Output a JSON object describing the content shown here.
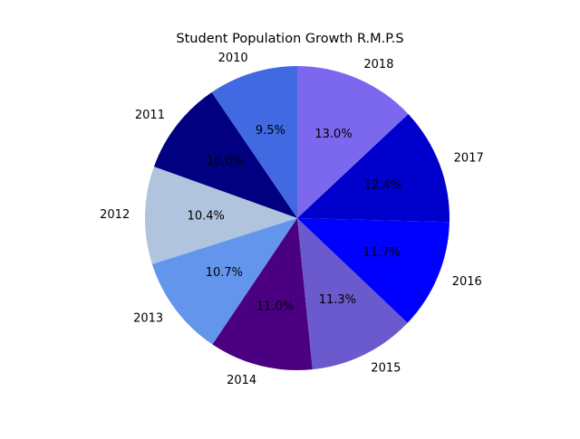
{
  "chart_data": {
    "type": "pie",
    "title": "Student Population Growth R.M.P.S",
    "categories": [
      "2010",
      "2011",
      "2012",
      "2013",
      "2014",
      "2015",
      "2016",
      "2017",
      "2018"
    ],
    "values": [
      9.5,
      10.0,
      10.4,
      10.7,
      11.0,
      11.3,
      11.7,
      12.4,
      13.0
    ],
    "percent_labels": [
      "9.5%",
      "10.0%",
      "10.4%",
      "10.7%",
      "11.0%",
      "11.3%",
      "11.7%",
      "12.4%",
      "13.0%"
    ],
    "colors": [
      "#4169e1",
      "#000080",
      "#b0c4de",
      "#6495ed",
      "#4b0082",
      "#6a5acd",
      "#0000ff",
      "#0000cd",
      "#7b68ee"
    ],
    "start_angle_deg": 90,
    "direction": "counterclockwise",
    "legend": "none"
  }
}
